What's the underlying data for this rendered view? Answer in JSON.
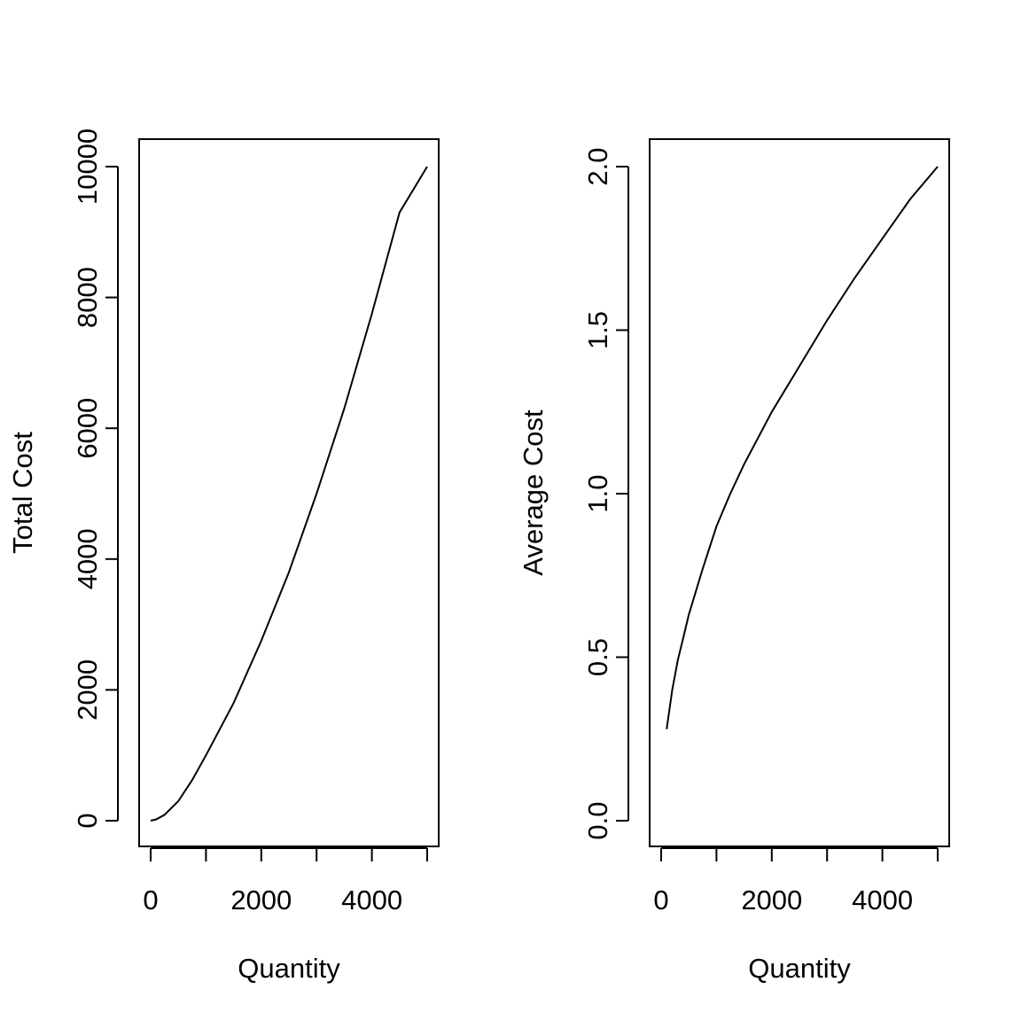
{
  "chart_data": [
    {
      "type": "line",
      "xlabel": "Quantity",
      "ylabel": "Total Cost",
      "xlim": [
        0,
        5000
      ],
      "ylim": [
        0,
        10000
      ],
      "x_ticks": [
        0,
        1000,
        2000,
        3000,
        4000,
        5000
      ],
      "x_tick_labels": [
        "0",
        "",
        "2000",
        "",
        "4000",
        ""
      ],
      "y_ticks": [
        0,
        2000,
        4000,
        6000,
        8000,
        10000
      ],
      "y_tick_labels": [
        "0",
        "2000",
        "4000",
        "6000",
        "8000",
        "10000"
      ],
      "series": [
        {
          "x": [
            0,
            100,
            250,
            500,
            750,
            1000,
            1500,
            2000,
            2500,
            3000,
            3500,
            4000,
            4500,
            5000
          ],
          "y": [
            0,
            20,
            90,
            300,
            620,
            1000,
            1800,
            2750,
            3800,
            5000,
            6300,
            7750,
            9300,
            10000
          ]
        }
      ]
    },
    {
      "type": "line",
      "xlabel": "Quantity",
      "ylabel": "Average Cost",
      "xlim": [
        0,
        5000
      ],
      "ylim": [
        0,
        2.0
      ],
      "x_ticks": [
        0,
        1000,
        2000,
        3000,
        4000,
        5000
      ],
      "x_tick_labels": [
        "0",
        "",
        "2000",
        "",
        "4000",
        ""
      ],
      "y_ticks": [
        0,
        0.5,
        1.0,
        1.5,
        2.0
      ],
      "y_tick_labels": [
        "0.0",
        "0.5",
        "1.0",
        "1.5",
        "2.0"
      ],
      "series": [
        {
          "x": [
            100,
            200,
            300,
            400,
            500,
            750,
            1000,
            1250,
            1500,
            2000,
            2500,
            3000,
            3500,
            4000,
            4500,
            5000
          ],
          "y": [
            0.28,
            0.4,
            0.49,
            0.56,
            0.63,
            0.77,
            0.9,
            1.0,
            1.09,
            1.25,
            1.39,
            1.53,
            1.66,
            1.78,
            1.9,
            2.0
          ]
        }
      ]
    }
  ]
}
